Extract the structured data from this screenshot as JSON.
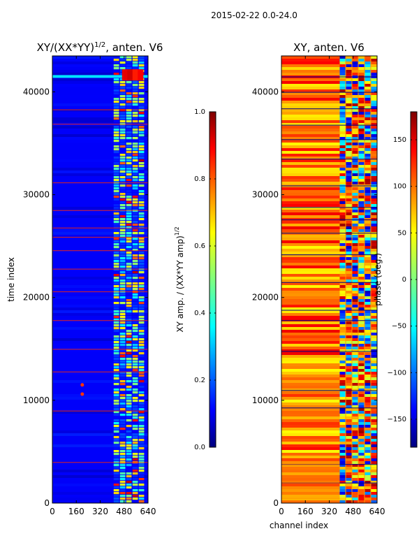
{
  "suptitle": "2015-02-22 0.0-24.0",
  "chart_data": [
    {
      "type": "heatmap",
      "title_main": "XY/(XX*YY)",
      "title_sup": "1/2",
      "title_suffix": ", anten. V6",
      "xlabel": "",
      "ylabel": "time index",
      "xlim": [
        0,
        640
      ],
      "ylim": [
        0,
        43500
      ],
      "xticks": [
        "0",
        "160",
        "320",
        "480",
        "640"
      ],
      "xtick_values": [
        0,
        160,
        320,
        480,
        640
      ],
      "yticks": [
        "0",
        "10000",
        "20000",
        "30000",
        "40000"
      ],
      "ytick_values": [
        0,
        10000,
        20000,
        30000,
        40000
      ],
      "background_value": 0.12,
      "active_band_channels": [
        410,
        620
      ],
      "colorbar": {
        "label": "XY amp. / (XX*YY amp)",
        "label_sup": "1/2",
        "range": [
          0.0,
          1.0
        ],
        "ticks": [
          "0.0",
          "0.2",
          "0.4",
          "0.6",
          "0.8",
          "1.0"
        ],
        "tick_values": [
          0.0,
          0.2,
          0.4,
          0.6,
          0.8,
          1.0
        ]
      }
    },
    {
      "type": "heatmap",
      "title": "XY, anten. V6",
      "xlabel": "channel index",
      "ylabel": "",
      "xlim": [
        0,
        640
      ],
      "ylim": [
        0,
        43500
      ],
      "xticks": [
        "0",
        "160",
        "320",
        "480",
        "640"
      ],
      "xtick_values": [
        0,
        160,
        320,
        480,
        640
      ],
      "yticks": [
        "0",
        "10000",
        "20000",
        "30000",
        "40000"
      ],
      "ytick_values": [
        0,
        10000,
        20000,
        30000,
        40000
      ],
      "background_value_deg": 80,
      "colorbar": {
        "label": "phase (deg.)",
        "range": [
          -180,
          180
        ],
        "ticks": [
          "−150",
          "−100",
          "−50",
          "0",
          "50",
          "100",
          "150"
        ],
        "tick_values": [
          -150,
          -100,
          -50,
          0,
          50,
          100,
          150
        ]
      }
    }
  ],
  "colors": {
    "jet_stops": [
      "#00007f",
      "#0000ff",
      "#00ffff",
      "#7fff7f",
      "#ffff00",
      "#ff0000",
      "#7f0000"
    ]
  }
}
